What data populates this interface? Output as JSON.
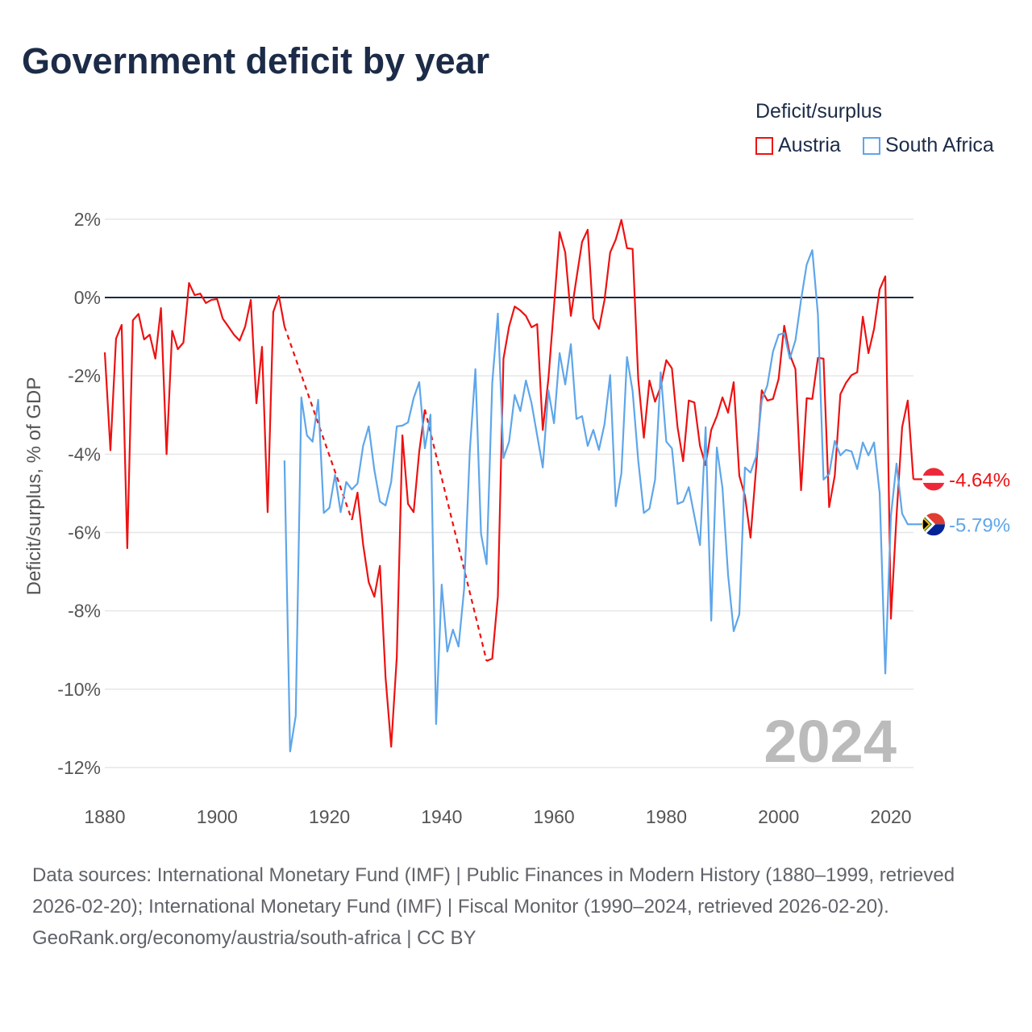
{
  "title": "Government deficit by year",
  "legend": {
    "title": "Deficit/surplus",
    "items": [
      "Austria",
      "South Africa"
    ]
  },
  "footer": {
    "sources": "Data sources: International Monetary Fund (IMF) | Public Finances in Modern History (1880–1999, retrieved 2026-02-20); International Monetary Fund (IMF) | Fiscal Monitor (1990–2024, retrieved 2026-02-20).",
    "credit": "GeoRank.org/economy/austria/south-africa | CC BY"
  },
  "colors": {
    "austria": "#ee1111",
    "south_africa": "#5ea6ea",
    "zero": "#1c2b47"
  },
  "chart_data": {
    "type": "line",
    "title": "Government deficit by year",
    "ylabel": "Deficit/surplus, % of GDP",
    "xlabel": "",
    "xlim": [
      1880,
      2024
    ],
    "ylim": [
      -12,
      2
    ],
    "xticks": [
      "1880",
      "1900",
      "1920",
      "1940",
      "1960",
      "1980",
      "2000",
      "2020"
    ],
    "yticks": [
      "2%",
      "0%",
      "-2%",
      "-4%",
      "-6%",
      "-8%",
      "-10%",
      "-12%"
    ],
    "year_label": "2024",
    "series": [
      {
        "name": "Austria",
        "start": 1880,
        "end_label": "-4.64%",
        "values": [
          -1.4,
          -3.9,
          -1.05,
          -0.7,
          -6.4,
          -0.58,
          -0.42,
          -1.07,
          -0.95,
          -1.56,
          -0.27,
          -4.0,
          -0.85,
          -1.32,
          -1.15,
          0.37,
          0.06,
          0.1,
          -0.14,
          -0.06,
          -0.04,
          -0.54,
          -0.74,
          -0.95,
          -1.1,
          -0.74,
          -0.06,
          -2.7,
          -1.26,
          -5.48,
          -0.37,
          0.04,
          -0.74,
          null,
          null,
          null,
          null,
          null,
          null,
          null,
          null,
          null,
          null,
          null,
          -5.68,
          -4.98,
          -6.3,
          -7.27,
          -7.64,
          -6.85,
          -9.7,
          -11.47,
          -9.18,
          -3.52,
          -5.27,
          -5.48,
          -3.93,
          -2.86,
          null,
          null,
          null,
          null,
          null,
          null,
          null,
          null,
          null,
          null,
          -9.28,
          -9.22,
          -7.64,
          -1.56,
          -0.74,
          -0.23,
          -0.33,
          -0.47,
          -0.76,
          -0.68,
          -3.38,
          -2.08,
          -0.23,
          1.67,
          1.15,
          -0.47,
          0.49,
          1.42,
          1.73,
          -0.54,
          -0.8,
          -0.06,
          1.15,
          1.48,
          1.98,
          1.26,
          1.24,
          -2.08,
          -3.58,
          -2.12,
          -2.66,
          -2.28,
          -1.6,
          -1.81,
          -3.31,
          -4.18,
          -2.63,
          -2.68,
          -3.79,
          -4.28,
          -3.38,
          -3.03,
          -2.55,
          -2.94,
          -2.16,
          -4.55,
          -5.06,
          -6.13,
          -4.34,
          -2.37,
          -2.63,
          -2.59,
          -2.08,
          -0.72,
          -1.46,
          -1.83,
          -4.92,
          -2.57,
          -2.59,
          -1.54,
          -1.56,
          -5.35,
          -4.55,
          -2.47,
          -2.18,
          -1.98,
          -1.91,
          -0.49,
          -1.42,
          -0.8,
          0.21,
          0.54,
          -8.2,
          -5.58,
          -3.31,
          -2.63,
          -4.64
        ]
      },
      {
        "name": "South Africa",
        "start": 1912,
        "end_label": "-5.79%",
        "values": [
          -4.16,
          -11.59,
          -10.68,
          -2.55,
          -3.52,
          -3.68,
          -2.61,
          -5.5,
          -5.37,
          -4.53,
          -5.48,
          -4.71,
          -4.9,
          -4.75,
          -3.79,
          -3.29,
          -4.4,
          -5.21,
          -5.31,
          -4.71,
          -3.29,
          -3.27,
          -3.19,
          -2.57,
          -2.16,
          -3.85,
          -2.99,
          -10.89,
          -7.33,
          -9.04,
          -8.48,
          -8.91,
          -7.43,
          -3.93,
          -1.83,
          -6.03,
          -6.81,
          -2.18,
          -0.41,
          -4.1,
          -3.68,
          -2.49,
          -2.9,
          -2.12,
          -2.7,
          -3.52,
          -4.34,
          -2.37,
          -3.21,
          -1.42,
          -2.22,
          -1.19,
          -3.1,
          -3.03,
          -3.79,
          -3.38,
          -3.89,
          -3.23,
          -1.98,
          -5.33,
          -4.49,
          -1.52,
          -2.39,
          -4.16,
          -5.5,
          -5.39,
          -4.65,
          -1.91,
          -3.68,
          -3.85,
          -5.27,
          -5.21,
          -4.84,
          -5.58,
          -6.32,
          -3.31,
          -8.25,
          -3.83,
          -4.86,
          -7.08,
          -8.52,
          -8.09,
          -4.34,
          -4.47,
          -4.06,
          -2.63,
          -2.24,
          -1.38,
          -0.95,
          -0.91,
          -1.56,
          -1.09,
          -0.06,
          0.84,
          1.21,
          -0.43,
          -4.65,
          -4.51,
          -3.66,
          -4.03,
          -3.89,
          -3.93,
          -4.38,
          -3.7,
          -4.03,
          -3.7,
          -5.0,
          -9.6,
          -5.58,
          -4.24,
          -5.52,
          -5.79,
          -5.79
        ]
      }
    ]
  }
}
